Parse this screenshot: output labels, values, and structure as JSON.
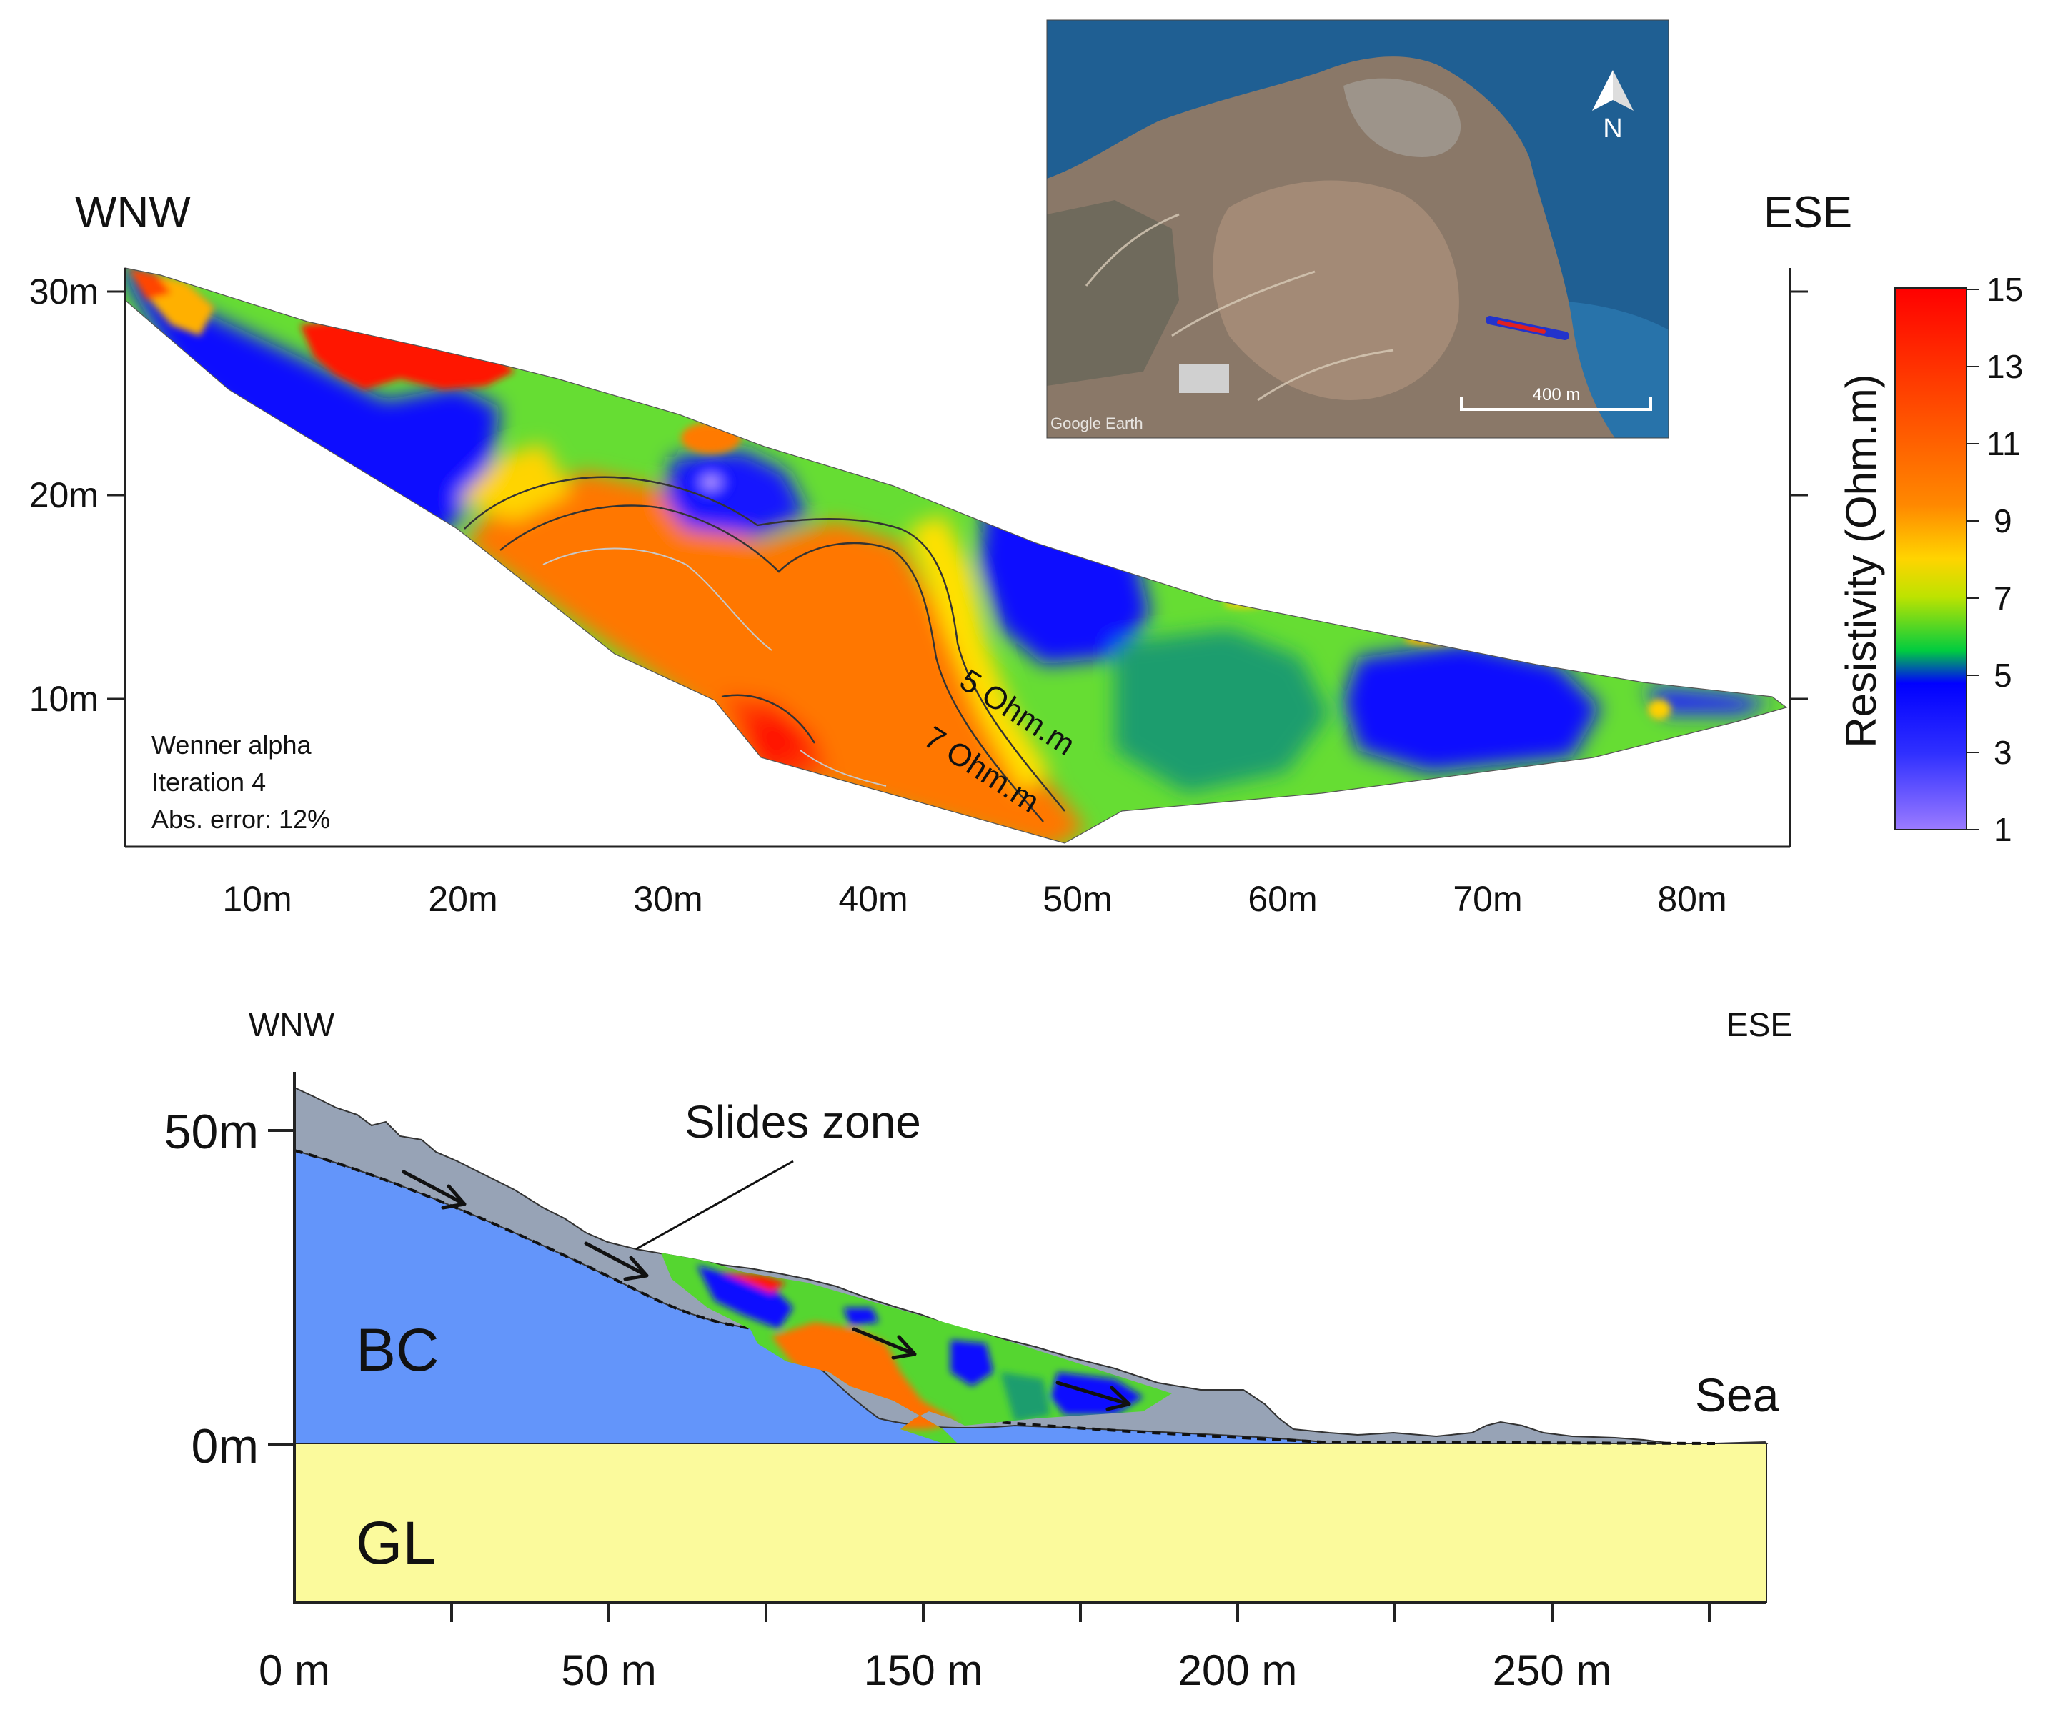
{
  "top_section": {
    "left_direction": "WNW",
    "right_direction": "ESE",
    "y_ticks": [
      "30m",
      "20m",
      "10m"
    ],
    "x_ticks": [
      "10m",
      "20m",
      "30m",
      "40m",
      "50m",
      "60m",
      "70m",
      "80m"
    ],
    "contour_labels": [
      "5 Ohm.m",
      "7 Ohm.m"
    ],
    "info_lines": [
      "Wenner alpha",
      "Iteration 4",
      "Abs. error: 12%"
    ]
  },
  "map_inset": {
    "north_label": "N",
    "scale_label": "400 m",
    "watermark": "Google Earth",
    "colors": {
      "sea": "#1f5f93",
      "land": "#8a7868",
      "profile_line": "#2233cc",
      "profile_highlight": "#e02020"
    }
  },
  "colorbar": {
    "title": "Resistivity (Ohm.m)",
    "ticks": [
      "15",
      "13",
      "11",
      "9",
      "7",
      "5",
      "3",
      "1"
    ],
    "colors": [
      "#ff0000",
      "#ff5500",
      "#ff8800",
      "#ffd400",
      "#00dd00",
      "#0000ff",
      "#9b7bff"
    ]
  },
  "bottom_section": {
    "left_direction": "WNW",
    "right_direction": "ESE",
    "slides_label": "Slides zone",
    "bc_label": "BC",
    "gl_label": "GL",
    "sea_label": "Sea",
    "y_ticks": [
      "50m",
      "0m"
    ],
    "x_ticks": [
      "0 m",
      "50 m",
      "150 m",
      "200 m",
      "250 m"
    ],
    "colors": {
      "bc": "#6395fa",
      "gl": "#fbfa9c",
      "debris": "#97a3b6"
    }
  }
}
